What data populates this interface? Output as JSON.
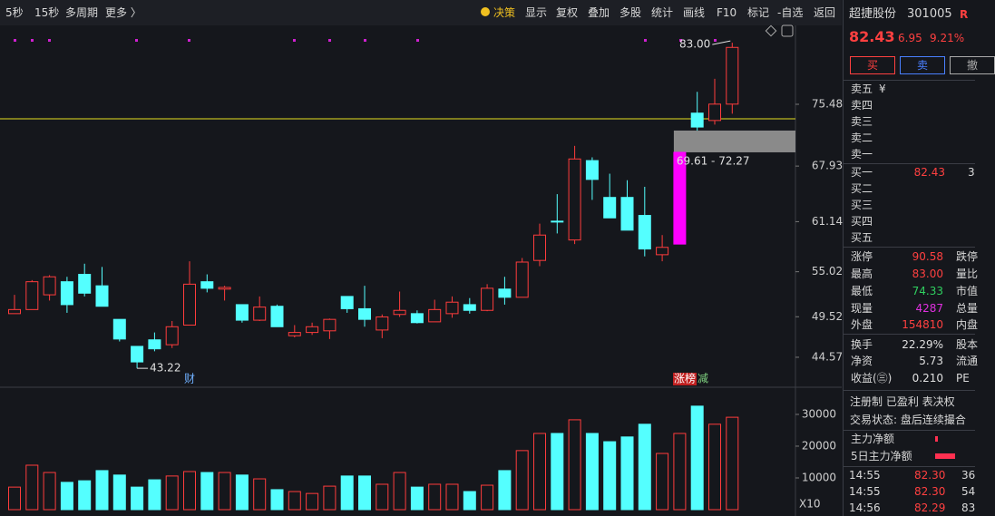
{
  "toolbar": {
    "left": [
      "5秒",
      "15秒",
      "多周期",
      "更多 〉"
    ],
    "right": [
      "决策",
      "显示",
      "复权",
      "叠加",
      "多股",
      "统计",
      "画线",
      "F10",
      "标记",
      "-自选",
      "返回"
    ]
  },
  "price_chart": {
    "type": "candlestick",
    "ylim": [
      41.13,
      85.12
    ],
    "yticks": [
      75.48,
      67.93,
      61.14,
      55.02,
      49.52,
      44.57
    ],
    "up_color": "#ff3c3c",
    "down_color": "#54ffff",
    "hline": {
      "value": 73.71,
      "color": "#e8e020"
    },
    "candles": [
      {
        "open": 49.9,
        "high": 52.2,
        "low": 49.9,
        "close": 50.4
      },
      {
        "open": 50.4,
        "high": 54.0,
        "low": 50.4,
        "close": 53.8
      },
      {
        "open": 52.2,
        "high": 54.6,
        "low": 51.5,
        "close": 54.4
      },
      {
        "open": 53.8,
        "high": 54.4,
        "low": 50.0,
        "close": 51.0
      },
      {
        "open": 54.7,
        "high": 56.0,
        "low": 52.0,
        "close": 52.4
      },
      {
        "open": 53.3,
        "high": 55.6,
        "low": 50.8,
        "close": 50.8
      },
      {
        "open": 49.2,
        "high": 49.2,
        "low": 46.5,
        "close": 46.8
      },
      {
        "open": 45.9,
        "high": 45.9,
        "low": 43.22,
        "close": 44.0
      },
      {
        "open": 46.7,
        "high": 47.6,
        "low": 45.3,
        "close": 45.6
      },
      {
        "open": 46.1,
        "high": 49.0,
        "low": 45.7,
        "close": 48.3
      },
      {
        "open": 48.5,
        "high": 56.3,
        "low": 48.5,
        "close": 53.5
      },
      {
        "open": 53.8,
        "high": 54.7,
        "low": 52.5,
        "close": 53.0
      },
      {
        "open": 52.9,
        "high": 53.3,
        "low": 51.5,
        "close": 53.1
      },
      {
        "open": 51.0,
        "high": 51.0,
        "low": 48.8,
        "close": 49.1
      },
      {
        "open": 49.1,
        "high": 52.0,
        "low": 49.0,
        "close": 50.7
      },
      {
        "open": 50.8,
        "high": 51.0,
        "low": 48.3,
        "close": 48.3
      },
      {
        "open": 47.2,
        "high": 48.5,
        "low": 47.0,
        "close": 47.6
      },
      {
        "open": 47.6,
        "high": 48.8,
        "low": 47.3,
        "close": 48.3
      },
      {
        "open": 47.8,
        "high": 49.3,
        "low": 46.8,
        "close": 49.2
      },
      {
        "open": 52.0,
        "high": 52.0,
        "low": 50.0,
        "close": 50.5
      },
      {
        "open": 50.5,
        "high": 53.3,
        "low": 48.3,
        "close": 49.2
      },
      {
        "open": 47.9,
        "high": 49.8,
        "low": 46.9,
        "close": 49.5
      },
      {
        "open": 49.8,
        "high": 52.6,
        "low": 49.5,
        "close": 50.3
      },
      {
        "open": 49.9,
        "high": 50.3,
        "low": 48.7,
        "close": 48.8
      },
      {
        "open": 48.9,
        "high": 51.6,
        "low": 48.9,
        "close": 50.4
      },
      {
        "open": 49.9,
        "high": 52.0,
        "low": 49.4,
        "close": 51.3
      },
      {
        "open": 51.0,
        "high": 51.8,
        "low": 49.9,
        "close": 50.3
      },
      {
        "open": 50.3,
        "high": 53.5,
        "low": 50.2,
        "close": 53.0
      },
      {
        "open": 52.9,
        "high": 54.4,
        "low": 51.0,
        "close": 51.9
      },
      {
        "open": 51.9,
        "high": 56.7,
        "low": 51.9,
        "close": 56.2
      },
      {
        "open": 56.4,
        "high": 60.9,
        "low": 55.7,
        "close": 59.5
      },
      {
        "open": 61.2,
        "high": 64.5,
        "low": 59.7,
        "close": 61.1
      },
      {
        "open": 58.9,
        "high": 70.4,
        "low": 58.4,
        "close": 68.8
      },
      {
        "open": 68.6,
        "high": 69.0,
        "low": 63.8,
        "close": 66.3
      },
      {
        "open": 64.1,
        "high": 67.0,
        "low": 61.6,
        "close": 61.6
      },
      {
        "open": 64.1,
        "high": 66.2,
        "low": 60.1,
        "close": 60.1
      },
      {
        "open": 61.9,
        "high": 65.4,
        "low": 56.9,
        "close": 57.8
      },
      {
        "open": 57.1,
        "high": 59.5,
        "low": 56.3,
        "close": 58.0
      },
      {
        "open": 58.4,
        "high": 69.61,
        "low": 58.4,
        "close": 69.61,
        "color": "#ff00ff"
      },
      {
        "open": 74.4,
        "high": 77.0,
        "low": 72.27,
        "close": 72.7
      },
      {
        "open": 73.5,
        "high": 78.6,
        "low": 73.0,
        "close": 75.5
      },
      {
        "open": 75.5,
        "high": 83.0,
        "low": 74.33,
        "close": 82.43
      }
    ],
    "gap": {
      "low": 69.61,
      "high": 72.27,
      "color": "#8a8a8a"
    },
    "annotations": {
      "high_label": "83.00",
      "low_label": "43.22",
      "gap_label": "69.61 - 72.27",
      "finance_tag": "财",
      "limit_tag": "涨榜",
      "reduce_tag": "减"
    }
  },
  "volume_chart": {
    "type": "bar",
    "ylim": [
      0,
      37700
    ],
    "yticks": [
      10000,
      20000,
      30000
    ],
    "unit_label": "X10",
    "values": [
      7100,
      14000,
      11700,
      8600,
      9100,
      12300,
      10900,
      7100,
      9400,
      10600,
      12000,
      11700,
      11700,
      10900,
      9700,
      6300,
      5700,
      5100,
      7400,
      10600,
      10600,
      8000,
      11700,
      7100,
      8000,
      8000,
      5700,
      7700,
      12300,
      18600,
      24000,
      24000,
      28300,
      24000,
      21400,
      22900,
      26900,
      17700,
      24000,
      32600,
      26900,
      29100
    ]
  },
  "quote": {
    "name": "超捷股份",
    "code": "301005",
    "flag": "R",
    "price": "82.43",
    "change": "6.95",
    "change_pct": "9.21%",
    "buttons": [
      "买",
      "卖",
      "撤"
    ],
    "currency": "¥",
    "sell_levels": [
      "卖五",
      "卖四",
      "卖三",
      "卖二",
      "卖一"
    ],
    "buy_levels": [
      "买一",
      "买二",
      "买三",
      "买四",
      "买五"
    ],
    "buy1_price": "82.43",
    "buy1_volume": "3",
    "stats": [
      [
        "涨停",
        "90.58",
        "跌停"
      ],
      [
        "最高",
        "83.00",
        "量比"
      ],
      [
        "最低",
        "74.33",
        "市值"
      ],
      [
        "现量",
        "4287",
        "总量"
      ],
      [
        "外盘",
        "154810",
        "内盘"
      ],
      [
        "换手",
        "22.29%",
        "股本"
      ],
      [
        "净资",
        "5.73",
        "流通"
      ],
      [
        "收益(㊂)",
        "0.210",
        "PE"
      ]
    ],
    "stat_colors": [
      "#ff4040",
      "#ff4040",
      "#30d060",
      "#e030e0",
      "#ff4040",
      "#e0e0e0",
      "#e0e0e0",
      "#e0e0e0"
    ],
    "tags": "注册制 已盈利 表决权",
    "status": "交易状态: 盘后连续撮合",
    "flow_labels": [
      "主力净额",
      "5日主力净额"
    ],
    "trades": [
      [
        "14:55",
        "82.30",
        "36"
      ],
      [
        "14:55",
        "82.30",
        "54"
      ],
      [
        "14:56",
        "82.29",
        "83"
      ]
    ]
  }
}
